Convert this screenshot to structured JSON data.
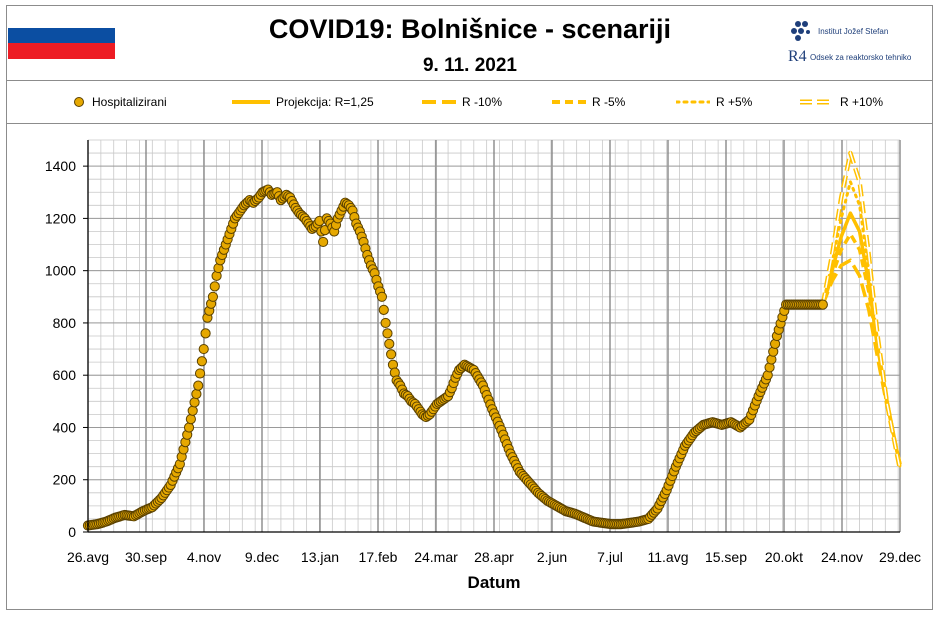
{
  "header": {
    "title": "COVID19: Bolnišnice - scenariji",
    "date": "9. 11. 2021",
    "logo_top_text": "Institut Jožef Stefan",
    "logo_bottom_text": "Odsek za reaktorsko tehniko",
    "logo_bottom_mark": "R4"
  },
  "colors": {
    "marker_fill": "#e6a800",
    "marker_edge": "#5a4100",
    "projection": "#ffc000",
    "grid": "#c8c8c8",
    "grid_major": "#7f7f7f"
  },
  "chart_data": {
    "type": "line",
    "title": "",
    "xlabel": "Datum",
    "ylabel": "",
    "ylim": [
      0,
      1500
    ],
    "yticks": [
      0,
      200,
      400,
      600,
      800,
      1000,
      1200,
      1400
    ],
    "grid": true,
    "legend": "top",
    "x_tick_labels": [
      "26.avg",
      "30.sep",
      "4.nov",
      "9.dec",
      "13.jan",
      "17.feb",
      "24.mar",
      "28.apr",
      "2.jun",
      "7.jul",
      "11.avg",
      "15.sep",
      "20.okt",
      "24.nov",
      "29.dec"
    ],
    "legend_entries": [
      "Hospitalizirani",
      "Projekcija: R=1,25",
      "R -10%",
      "R -5%",
      "R +5%",
      "R +10%"
    ],
    "series": [
      {
        "name": "Hospitalizirani",
        "style": "markers",
        "x": [
          0,
          5,
          10,
          15,
          20,
          25,
          30,
          35,
          40,
          45,
          50,
          55,
          60,
          63,
          65,
          68,
          70,
          72,
          75,
          78,
          80,
          83,
          85,
          88,
          90,
          93,
          95,
          98,
          100,
          103,
          105,
          108,
          110,
          113,
          115,
          118,
          120,
          122,
          124,
          126,
          128,
          130,
          132,
          134,
          136,
          140,
          142,
          144,
          146,
          148,
          150,
          152,
          154,
          156,
          158,
          160,
          162,
          164,
          166,
          168,
          170,
          172,
          174,
          176,
          178,
          180,
          182,
          184,
          186,
          188,
          190,
          192,
          194,
          196,
          198,
          200,
          202,
          205,
          210,
          215,
          220,
          225,
          230,
          235,
          240,
          245,
          250,
          255,
          260,
          265,
          270,
          275,
          280,
          285,
          290,
          295,
          300,
          305,
          310,
          315,
          320,
          325,
          330,
          335,
          340,
          345,
          350,
          355,
          360,
          365,
          370,
          375,
          380,
          385,
          390,
          395,
          400,
          405,
          410,
          415,
          420,
          425,
          430,
          435,
          440,
          442
        ],
        "y": [
          25,
          30,
          40,
          55,
          65,
          60,
          80,
          95,
          130,
          180,
          260,
          400,
          560,
          700,
          820,
          900,
          980,
          1040,
          1100,
          1160,
          1200,
          1230,
          1250,
          1270,
          1260,
          1280,
          1300,
          1310,
          1290,
          1300,
          1270,
          1290,
          1280,
          1240,
          1220,
          1200,
          1180,
          1160,
          1170,
          1190,
          1110,
          1200,
          1180,
          1150,
          1200,
          1260,
          1250,
          1230,
          1180,
          1150,
          1110,
          1060,
          1020,
          990,
          940,
          900,
          800,
          720,
          640,
          580,
          560,
          530,
          520,
          500,
          490,
          470,
          450,
          440,
          450,
          470,
          490,
          500,
          510,
          520,
          550,
          590,
          620,
          640,
          620,
          560,
          470,
          390,
          300,
          230,
          190,
          150,
          120,
          100,
          80,
          70,
          55,
          40,
          35,
          30,
          30,
          35,
          40,
          50,
          90,
          160,
          250,
          330,
          380,
          410,
          420,
          410,
          420,
          400,
          430,
          520,
          600,
          750,
          870,
          870,
          870,
          870,
          870,
          870,
          870,
          870,
          870,
          870,
          870,
          870,
          870,
          870
        ]
      },
      {
        "name": "Projekcija: R=1,25",
        "style": "solid",
        "x": [
          400,
          405,
          410,
          415,
          420,
          425,
          430,
          435,
          440,
          442
        ],
        "y": [
          870,
          1000,
          1130,
          1220,
          1150,
          950,
          700,
          500,
          320,
          260
        ]
      },
      {
        "name": "R -10%",
        "style": "dash-long",
        "x": [
          400,
          405,
          410,
          415,
          420,
          425,
          430,
          435,
          440,
          442
        ],
        "y": [
          870,
          960,
          1020,
          1040,
          980,
          850,
          660,
          480,
          320,
          260
        ]
      },
      {
        "name": "R -5%",
        "style": "dash",
        "x": [
          400,
          405,
          410,
          415,
          420,
          425,
          430,
          435,
          440,
          442
        ],
        "y": [
          870,
          980,
          1080,
          1140,
          1080,
          920,
          700,
          490,
          320,
          260
        ]
      },
      {
        "name": "R +5%",
        "style": "dot",
        "x": [
          400,
          405,
          410,
          415,
          420,
          425,
          430,
          435,
          440,
          442
        ],
        "y": [
          870,
          1030,
          1200,
          1340,
          1250,
          1000,
          720,
          490,
          320,
          250
        ]
      },
      {
        "name": "R +10%",
        "style": "double",
        "x": [
          400,
          405,
          410,
          415,
          420,
          425,
          430,
          435,
          440,
          442
        ],
        "y": [
          870,
          1060,
          1280,
          1450,
          1340,
          1060,
          740,
          490,
          310,
          240
        ]
      }
    ]
  }
}
